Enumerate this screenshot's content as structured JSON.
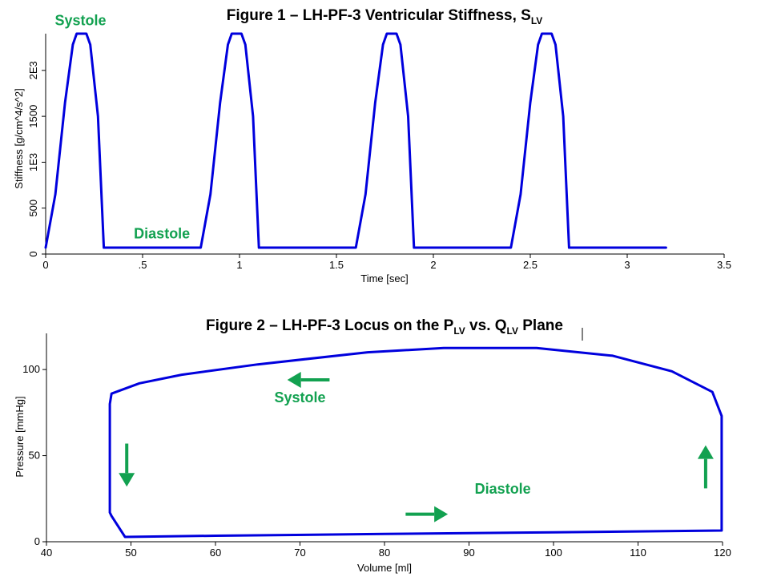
{
  "colors": {
    "trace": "#0000dd",
    "phase": "#12a150",
    "axis": "#000000"
  },
  "chart_data": [
    {
      "type": "line",
      "title_main": "Figure 1 – LH-PF-3 Ventricular Stiffness, S",
      "title_sub": "LV",
      "xlabel": "Time [sec]",
      "ylabel": "Stiffness [g/cm^4/s^2]",
      "xlim": [
        0,
        3.5
      ],
      "ylim": [
        0,
        2400
      ],
      "x_ticks": [
        {
          "value": 0,
          "label": "0"
        },
        {
          "value": 0.5,
          "label": ".5"
        },
        {
          "value": 1,
          "label": "1"
        },
        {
          "value": 1.5,
          "label": "1.5"
        },
        {
          "value": 2,
          "label": "2"
        },
        {
          "value": 2.5,
          "label": "2.5"
        },
        {
          "value": 3,
          "label": "3"
        },
        {
          "value": 3.5,
          "label": "3.5"
        }
      ],
      "y_ticks": [
        {
          "value": 0,
          "label": "0"
        },
        {
          "value": 500,
          "label": "500"
        },
        {
          "value": 1000,
          "label": "1E3"
        },
        {
          "value": 1500,
          "label": "1500"
        },
        {
          "value": 2000,
          "label": "2E3"
        }
      ],
      "annotations": [
        {
          "text": "Systole",
          "x": 0.18,
          "y": 2490
        },
        {
          "text": "Diastole",
          "x": 0.6,
          "y": 170
        }
      ],
      "series": [
        {
          "x": [
            0,
            0.05,
            0.1,
            0.14,
            0.16,
            0.21,
            0.23,
            0.27,
            0.3,
            0.8,
            0.85,
            0.9,
            0.94,
            0.96,
            1.01,
            1.03,
            1.07,
            1.1,
            1.6,
            1.65,
            1.7,
            1.74,
            1.76,
            1.81,
            1.83,
            1.87,
            1.9,
            2.4,
            2.45,
            2.5,
            2.54,
            2.56,
            2.61,
            2.63,
            2.67,
            2.7,
            3.2
          ],
          "y": [
            70,
            650,
            1650,
            2280,
            2400,
            2400,
            2280,
            1500,
            70,
            70,
            650,
            1650,
            2280,
            2400,
            2400,
            2280,
            1500,
            70,
            70,
            650,
            1650,
            2280,
            2400,
            2400,
            2280,
            1500,
            70,
            70,
            650,
            1650,
            2280,
            2400,
            2400,
            2280,
            1500,
            70,
            70
          ]
        }
      ]
    },
    {
      "type": "line",
      "title_main": "Figure 2 – LH-PF-3 Locus on the P",
      "title_sub1": "LV",
      "title_mid": " vs. Q",
      "title_sub2": "LV",
      "title_end": " Plane",
      "xlabel": "Volume [ml]",
      "ylabel": "Pressure [mmHg]",
      "xlim": [
        40,
        120
      ],
      "ylim": [
        0,
        121
      ],
      "x_ticks": [
        {
          "value": 40,
          "label": "40"
        },
        {
          "value": 50,
          "label": "50"
        },
        {
          "value": 60,
          "label": "60"
        },
        {
          "value": 70,
          "label": "70"
        },
        {
          "value": 80,
          "label": "80"
        },
        {
          "value": 90,
          "label": "90"
        },
        {
          "value": 100,
          "label": "100"
        },
        {
          "value": 110,
          "label": "110"
        },
        {
          "value": 120,
          "label": "120"
        }
      ],
      "y_ticks": [
        {
          "value": 0,
          "label": "0"
        },
        {
          "value": 50,
          "label": "50"
        },
        {
          "value": 100,
          "label": "100"
        }
      ],
      "annotations": [
        {
          "text": "Systole",
          "x": 70,
          "y": 81
        },
        {
          "text": "Diastole",
          "x": 94,
          "y": 28
        }
      ],
      "arrows": [
        {
          "direction": "left",
          "x_from": 73.5,
          "x_to": 68.5,
          "y": 94
        },
        {
          "direction": "down",
          "x": 49.5,
          "y_from": 57,
          "y_to": 32
        },
        {
          "direction": "right",
          "x_from": 82.5,
          "x_to": 87.5,
          "y": 16
        },
        {
          "direction": "up",
          "x": 118,
          "y_from": 31,
          "y_to": 56
        }
      ],
      "series": [
        {
          "x": [
            119.9,
            119.9,
            118.8,
            114,
            107,
            98,
            87,
            78,
            65,
            56,
            51,
            47.7,
            47.5,
            47.5,
            47.7,
            49.3,
            60,
            80,
            100,
            119.9
          ],
          "y": [
            6.5,
            73,
            87,
            99,
            108,
            112.5,
            112.5,
            110,
            103,
            97,
            92,
            86,
            80,
            17,
            15,
            2.8,
            3.5,
            4.5,
            5.5,
            6.5
          ]
        }
      ]
    }
  ]
}
